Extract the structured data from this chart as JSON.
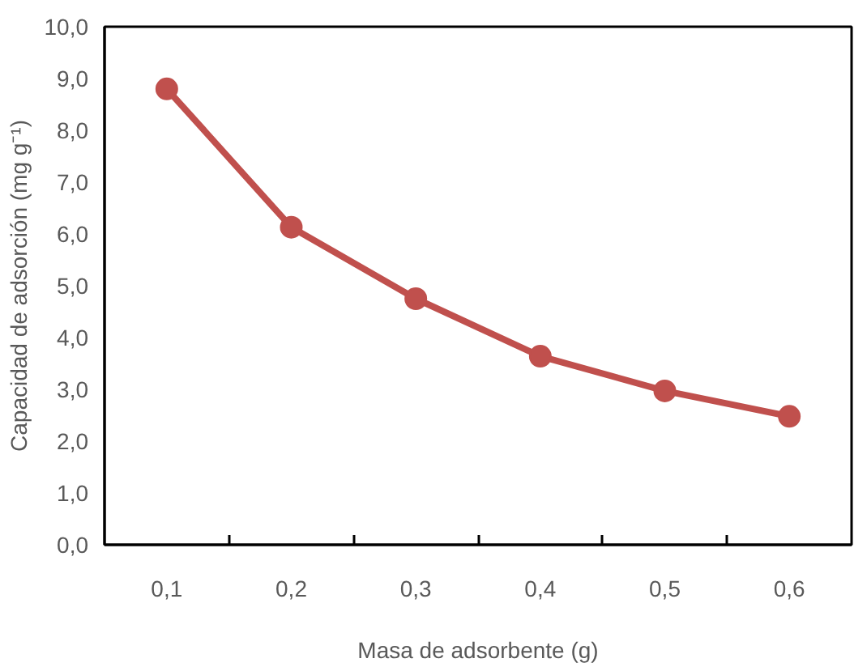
{
  "chart_data": {
    "type": "line",
    "xlabel": "Masa de adsorbente (g)",
    "ylabel": "Capacidad de adsorción (mg g⁻¹)",
    "categories": [
      "0,1",
      "0,2",
      "0,3",
      "0,4",
      "0,5",
      "0,6"
    ],
    "series": [
      {
        "color": "#c0504d",
        "values": [
          8.8,
          6.13,
          4.75,
          3.64,
          2.97,
          2.48
        ]
      }
    ],
    "ylim": [
      0,
      10
    ],
    "yticks": [
      {
        "value": 0,
        "label": "0,0"
      },
      {
        "value": 1,
        "label": "1,0"
      },
      {
        "value": 2,
        "label": "2,0"
      },
      {
        "value": 3,
        "label": "3,0"
      },
      {
        "value": 4,
        "label": "4,0"
      },
      {
        "value": 5,
        "label": "5,0"
      },
      {
        "value": 6,
        "label": "6,0"
      },
      {
        "value": 7,
        "label": "7,0"
      },
      {
        "value": 8,
        "label": "8,0"
      },
      {
        "value": 9,
        "label": "9,0"
      },
      {
        "value": 10,
        "label": "10,0"
      }
    ],
    "marker": "circle",
    "line_style": "solid"
  }
}
